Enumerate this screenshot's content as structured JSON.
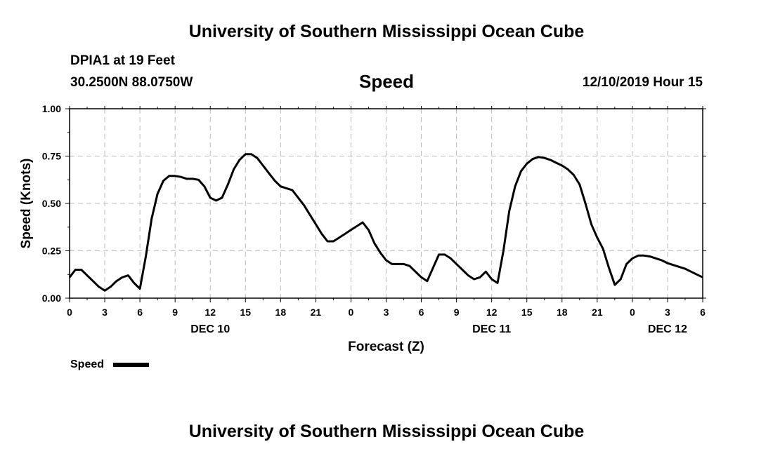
{
  "header": {
    "title": "University of Southern Mississippi Ocean Cube",
    "station": "DPIA1 at 19 Feet",
    "coords": "30.2500N 88.0750W",
    "datetime": "12/10/2019 Hour 15"
  },
  "footer": {
    "title": "University of Southern Mississippi Ocean Cube"
  },
  "chart_data": {
    "type": "line",
    "title": "Speed",
    "xlabel": "Forecast (Z)",
    "ylabel": "Speed (Knots)",
    "xlim": [
      0,
      54
    ],
    "ylim": [
      0,
      1
    ],
    "grid": true,
    "x_tick_labels": [
      "0",
      "3",
      "6",
      "9",
      "12",
      "15",
      "18",
      "21",
      "0",
      "3",
      "6",
      "9",
      "12",
      "15",
      "18",
      "21",
      "0",
      "3",
      "6"
    ],
    "y_tick_labels": [
      "0.00",
      "0.25",
      "0.50",
      "0.75",
      "1.00"
    ],
    "day_labels": [
      {
        "label": "DEC 10",
        "x": 12
      },
      {
        "label": "DEC 11",
        "x": 36
      },
      {
        "label": "DEC 12",
        "x": 51
      }
    ],
    "legend": {
      "label": "Speed",
      "position": "bottom-left"
    },
    "series": [
      {
        "name": "Speed",
        "color": "#000000",
        "x": [
          0,
          0.5,
          1,
          1.5,
          2,
          2.5,
          3,
          3.5,
          4,
          4.5,
          5,
          5.5,
          6,
          6.5,
          7,
          7.5,
          8,
          8.5,
          9,
          9.5,
          10,
          10.5,
          11,
          11.5,
          12,
          12.5,
          13,
          13.5,
          14,
          14.5,
          15,
          15.5,
          16,
          16.5,
          17,
          17.5,
          18,
          18.5,
          19,
          19.5,
          20,
          20.5,
          21,
          21.5,
          22,
          22.5,
          23,
          23.5,
          24,
          24.5,
          25,
          25.5,
          26,
          26.5,
          27,
          27.5,
          28,
          28.5,
          29,
          29.5,
          30,
          30.5,
          31,
          31.5,
          32,
          32.5,
          33,
          33.5,
          34,
          34.5,
          35,
          35.5,
          36,
          36.5,
          37,
          37.5,
          38,
          38.5,
          39,
          39.5,
          40,
          40.5,
          41,
          41.5,
          42,
          42.5,
          43,
          43.5,
          44,
          44.5,
          45,
          45.5,
          46,
          46.5,
          47,
          47.5,
          48,
          48.5,
          49,
          49.5,
          50,
          50.5,
          51,
          51.5,
          52,
          52.5,
          53,
          53.5,
          54
        ],
        "values": [
          0.11,
          0.15,
          0.15,
          0.12,
          0.09,
          0.06,
          0.04,
          0.06,
          0.09,
          0.11,
          0.12,
          0.08,
          0.05,
          0.22,
          0.42,
          0.55,
          0.62,
          0.645,
          0.645,
          0.64,
          0.63,
          0.63,
          0.625,
          0.59,
          0.53,
          0.515,
          0.53,
          0.6,
          0.68,
          0.73,
          0.76,
          0.76,
          0.74,
          0.7,
          0.66,
          0.62,
          0.59,
          0.58,
          0.57,
          0.53,
          0.49,
          0.44,
          0.39,
          0.34,
          0.3,
          0.3,
          0.32,
          0.34,
          0.36,
          0.38,
          0.4,
          0.36,
          0.29,
          0.24,
          0.2,
          0.18,
          0.18,
          0.18,
          0.17,
          0.14,
          0.11,
          0.09,
          0.16,
          0.23,
          0.23,
          0.21,
          0.18,
          0.15,
          0.12,
          0.1,
          0.11,
          0.14,
          0.1,
          0.08,
          0.25,
          0.46,
          0.59,
          0.67,
          0.71,
          0.735,
          0.745,
          0.74,
          0.73,
          0.715,
          0.7,
          0.68,
          0.65,
          0.6,
          0.5,
          0.39,
          0.32,
          0.26,
          0.16,
          0.07,
          0.1,
          0.18,
          0.21,
          0.225,
          0.225,
          0.22,
          0.21,
          0.2,
          0.185,
          0.175,
          0.165,
          0.155,
          0.14,
          0.125,
          0.11
        ]
      }
    ]
  }
}
